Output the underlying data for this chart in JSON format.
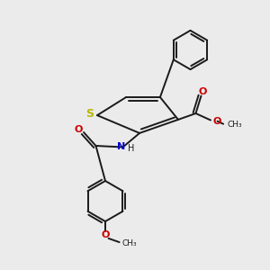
{
  "background_color": "#ebebeb",
  "bond_color": "#1a1a1a",
  "S_color": "#b8b800",
  "N_color": "#0000cc",
  "O_color": "#cc0000",
  "text_color": "#1a1a1a",
  "figsize": [
    3.0,
    3.0
  ],
  "dpi": 100,
  "xlim": [
    0,
    10
  ],
  "ylim": [
    0,
    10
  ]
}
